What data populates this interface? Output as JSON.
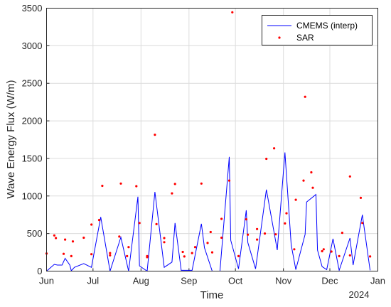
{
  "chart_data": {
    "type": "line",
    "title": "",
    "xlabel": "Time",
    "ylabel": "Wave Energy Flux (W/m)",
    "year_label": "2024",
    "x_ticks": [
      "Jun",
      "Jul",
      "Aug",
      "Sep",
      "Oct",
      "Nov",
      "Dec",
      "Jan"
    ],
    "x_tick_dates": [
      "2023-06-01",
      "2023-07-01",
      "2023-08-01",
      "2023-09-01",
      "2023-10-01",
      "2023-11-01",
      "2023-12-01",
      "2024-01-01"
    ],
    "xlim": [
      "2023-06-01",
      "2024-01-01"
    ],
    "ylim": [
      0,
      3500
    ],
    "y_ticks": [
      0,
      500,
      1000,
      1500,
      2000,
      2500,
      3000,
      3500
    ],
    "grid": true,
    "legend_position": "top-right",
    "series": [
      {
        "name": "CMEMS (interp)",
        "style": "line",
        "color": "#0000ff",
        "points": [
          [
            "2023-06-01",
            0
          ],
          [
            "2023-06-06",
            90
          ],
          [
            "2023-06-08",
            80
          ],
          [
            "2023-06-11",
            80
          ],
          [
            "2023-06-13",
            170
          ],
          [
            "2023-06-16",
            80
          ],
          [
            "2023-06-17",
            5
          ],
          [
            "2023-06-19",
            50
          ],
          [
            "2023-06-25",
            100
          ],
          [
            "2023-06-30",
            50
          ],
          [
            "2023-07-06",
            720
          ],
          [
            "2023-07-12",
            0
          ],
          [
            "2023-07-19",
            450
          ],
          [
            "2023-07-24",
            0
          ],
          [
            "2023-07-30",
            990
          ],
          [
            "2023-07-31",
            70
          ],
          [
            "2023-08-05",
            0
          ],
          [
            "2023-08-10",
            1055
          ],
          [
            "2023-08-16",
            50
          ],
          [
            "2023-08-21",
            120
          ],
          [
            "2023-08-23",
            640
          ],
          [
            "2023-08-27",
            10
          ],
          [
            "2023-09-03",
            10
          ],
          [
            "2023-09-09",
            630
          ],
          [
            "2023-09-11",
            310
          ],
          [
            "2023-09-16",
            0
          ],
          [
            "2023-09-21",
            0
          ],
          [
            "2023-09-27",
            1520
          ],
          [
            "2023-09-28",
            410
          ],
          [
            "2023-10-03",
            30
          ],
          [
            "2023-10-08",
            810
          ],
          [
            "2023-10-09",
            380
          ],
          [
            "2023-10-14",
            30
          ],
          [
            "2023-10-21",
            1085
          ],
          [
            "2023-10-28",
            280
          ],
          [
            "2023-11-02",
            1580
          ],
          [
            "2023-11-06",
            350
          ],
          [
            "2023-11-09",
            20
          ],
          [
            "2023-11-15",
            490
          ],
          [
            "2023-11-16",
            920
          ],
          [
            "2023-11-22",
            1020
          ],
          [
            "2023-11-23",
            280
          ],
          [
            "2023-11-26",
            60
          ],
          [
            "2023-11-29",
            20
          ],
          [
            "2023-12-03",
            430
          ],
          [
            "2023-12-07",
            10
          ],
          [
            "2023-12-14",
            440
          ],
          [
            "2023-12-16",
            80
          ],
          [
            "2023-12-22",
            750
          ],
          [
            "2023-12-27",
            10
          ]
        ]
      },
      {
        "name": "SAR",
        "style": "dots",
        "color": "#ff0000",
        "points": [
          [
            "2023-06-01",
            235
          ],
          [
            "2023-06-06",
            475
          ],
          [
            "2023-06-07",
            440
          ],
          [
            "2023-06-12",
            230
          ],
          [
            "2023-06-13",
            420
          ],
          [
            "2023-06-17",
            200
          ],
          [
            "2023-06-18",
            395
          ],
          [
            "2023-06-25",
            445
          ],
          [
            "2023-06-30",
            225
          ],
          [
            "2023-06-30",
            620
          ],
          [
            "2023-07-05",
            680
          ],
          [
            "2023-07-07",
            1135
          ],
          [
            "2023-07-12",
            210
          ],
          [
            "2023-07-12",
            240
          ],
          [
            "2023-07-18",
            460
          ],
          [
            "2023-07-19",
            1165
          ],
          [
            "2023-07-23",
            200
          ],
          [
            "2023-07-24",
            320
          ],
          [
            "2023-07-29",
            1130
          ],
          [
            "2023-07-31",
            640
          ],
          [
            "2023-08-05",
            200
          ],
          [
            "2023-08-05",
            185
          ],
          [
            "2023-08-10",
            1815
          ],
          [
            "2023-08-11",
            625
          ],
          [
            "2023-08-16",
            440
          ],
          [
            "2023-08-16",
            385
          ],
          [
            "2023-08-21",
            1035
          ],
          [
            "2023-08-23",
            1160
          ],
          [
            "2023-08-28",
            255
          ],
          [
            "2023-08-29",
            195
          ],
          [
            "2023-09-03",
            240
          ],
          [
            "2023-09-05",
            320
          ],
          [
            "2023-09-09",
            1165
          ],
          [
            "2023-09-13",
            375
          ],
          [
            "2023-09-15",
            520
          ],
          [
            "2023-09-16",
            250
          ],
          [
            "2023-09-22",
            445
          ],
          [
            "2023-09-22",
            695
          ],
          [
            "2023-09-27",
            1205
          ],
          [
            "2023-09-29",
            3445
          ],
          [
            "2023-10-03",
            200
          ],
          [
            "2023-10-08",
            690
          ],
          [
            "2023-10-09",
            485
          ],
          [
            "2023-10-15",
            420
          ],
          [
            "2023-10-15",
            560
          ],
          [
            "2023-10-20",
            500
          ],
          [
            "2023-10-21",
            1495
          ],
          [
            "2023-10-26",
            1635
          ],
          [
            "2023-10-27",
            490
          ],
          [
            "2023-11-02",
            635
          ],
          [
            "2023-11-03",
            770
          ],
          [
            "2023-11-08",
            290
          ],
          [
            "2023-11-09",
            950
          ],
          [
            "2023-11-14",
            1205
          ],
          [
            "2023-11-15",
            2320
          ],
          [
            "2023-11-19",
            1315
          ],
          [
            "2023-11-20",
            1110
          ],
          [
            "2023-11-26",
            265
          ],
          [
            "2023-11-27",
            290
          ],
          [
            "2023-12-02",
            260
          ],
          [
            "2023-12-07",
            200
          ],
          [
            "2023-12-09",
            510
          ],
          [
            "2023-12-14",
            210
          ],
          [
            "2023-12-14",
            1260
          ],
          [
            "2023-12-21",
            975
          ],
          [
            "2023-12-22",
            640
          ],
          [
            "2023-12-27",
            195
          ]
        ]
      }
    ]
  }
}
